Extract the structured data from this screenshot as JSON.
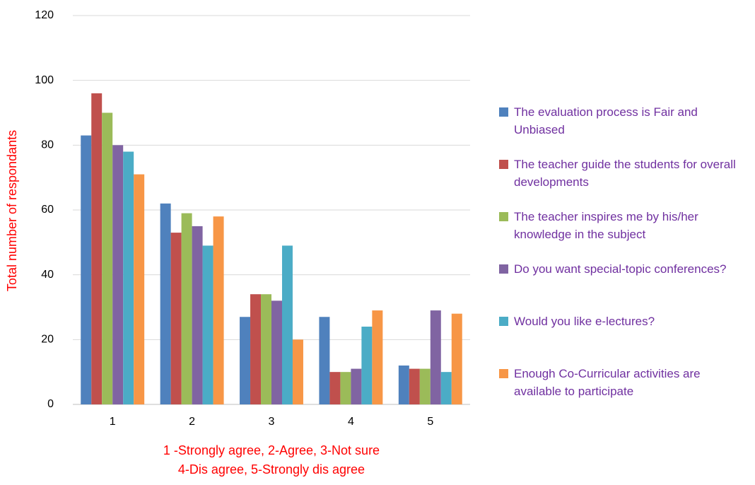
{
  "chart_data": {
    "type": "bar",
    "ylabel": "Total number of respondants",
    "xlabel": [
      "1 -Strongly agree, 2-Agree, 3-Not sure",
      "4-Dis agree, 5-Strongly dis agree"
    ],
    "categories": [
      "1",
      "2",
      "3",
      "4",
      "5"
    ],
    "series": [
      {
        "name": "The evaluation process is Fair and Unbiased",
        "color": "#4f81bd",
        "values": [
          83,
          62,
          27,
          27,
          12
        ]
      },
      {
        "name": "The teacher guide the students for overall developments",
        "color": "#c0504d",
        "values": [
          96,
          53,
          34,
          10,
          11
        ]
      },
      {
        "name": "The teacher inspires me by his/her knowledge in the subject",
        "color": "#9bbb59",
        "values": [
          90,
          59,
          34,
          10,
          11
        ]
      },
      {
        "name": "Do you want special-topic conferences?",
        "color": "#8064a2",
        "values": [
          80,
          55,
          32,
          11,
          29
        ]
      },
      {
        "name": "Would you like e-lectures?",
        "color": "#4bacc6",
        "values": [
          78,
          49,
          49,
          24,
          10
        ]
      },
      {
        "name": "Enough Co-Curricular activities are available to participate",
        "color": "#f79646",
        "values": [
          71,
          58,
          20,
          29,
          28
        ]
      }
    ],
    "ylim": [
      0,
      120
    ],
    "yticks": [
      0,
      20,
      40,
      60,
      80,
      100,
      120
    ],
    "grid": true,
    "legend": "right"
  }
}
